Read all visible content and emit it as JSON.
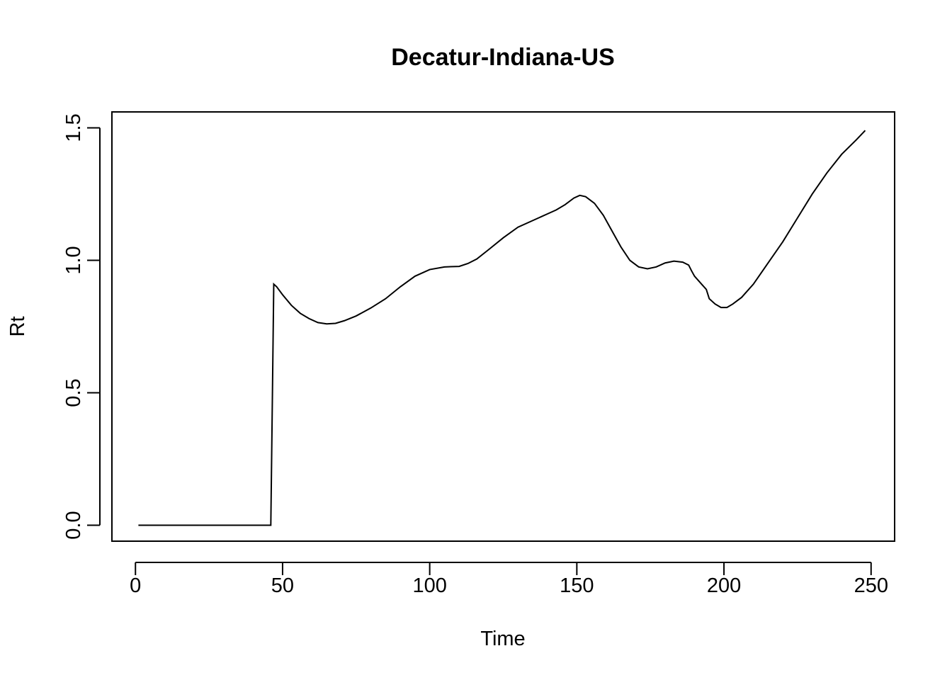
{
  "chart_data": {
    "type": "line",
    "title": "Decatur-Indiana-US",
    "xlabel": "Time",
    "ylabel": "Rt",
    "xlim": [
      -8,
      258
    ],
    "ylim": [
      -0.06,
      1.56
    ],
    "x_ticks": [
      0,
      50,
      100,
      150,
      200,
      250
    ],
    "x_tick_labels": [
      "0",
      "50",
      "100",
      "150",
      "200",
      "250"
    ],
    "y_ticks": [
      0.0,
      0.5,
      1.0,
      1.5
    ],
    "y_tick_labels": [
      "0.0",
      "0.5",
      "1.0",
      "1.5"
    ],
    "grid": false,
    "legend": "none",
    "line_color": "#000000",
    "series": [
      {
        "x": [
          1,
          5,
          10,
          20,
          30,
          40,
          46,
          46.5,
          47,
          48,
          50,
          53,
          56,
          59,
          62,
          65,
          68,
          71,
          75,
          80,
          85,
          90,
          95,
          100,
          105,
          110,
          113,
          116,
          120,
          125,
          130,
          135,
          140,
          143,
          146,
          149,
          151,
          153,
          156,
          159,
          162,
          165,
          168,
          171,
          174,
          177,
          180,
          183,
          186,
          188,
          189,
          190,
          192,
          194,
          195,
          197,
          199,
          201,
          203,
          206,
          210,
          215,
          220,
          225,
          230,
          235,
          240,
          245,
          248
        ],
        "y": [
          0.0,
          0.0,
          0.0,
          0.0,
          0.0,
          0.0,
          0.0,
          0.45,
          0.91,
          0.9,
          0.87,
          0.83,
          0.8,
          0.78,
          0.765,
          0.76,
          0.762,
          0.772,
          0.79,
          0.82,
          0.855,
          0.9,
          0.94,
          0.965,
          0.975,
          0.977,
          0.988,
          1.005,
          1.04,
          1.085,
          1.125,
          1.15,
          1.175,
          1.19,
          1.21,
          1.235,
          1.245,
          1.24,
          1.215,
          1.17,
          1.11,
          1.05,
          1.0,
          0.975,
          0.968,
          0.975,
          0.99,
          0.997,
          0.993,
          0.982,
          0.96,
          0.94,
          0.915,
          0.89,
          0.855,
          0.835,
          0.822,
          0.822,
          0.835,
          0.86,
          0.91,
          0.99,
          1.07,
          1.16,
          1.25,
          1.33,
          1.4,
          1.455,
          1.49
        ]
      }
    ]
  }
}
